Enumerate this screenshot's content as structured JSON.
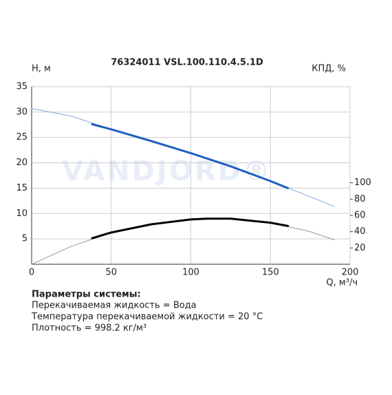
{
  "chart_data": {
    "type": "line",
    "title": "76324011 VSL.100.110.4.5.1D",
    "watermark": "VANDJORD®",
    "ylabel": "H, м",
    "y2label": "КПД, %",
    "xlabel": "Q, м³/ч",
    "xlim": [
      0,
      200
    ],
    "xticks": [
      0,
      50,
      100,
      150,
      200
    ],
    "ylim": [
      0,
      35
    ],
    "yticks": [
      5,
      10,
      15,
      20,
      25,
      30,
      35
    ],
    "y2lim": [
      0,
      218
    ],
    "y2ticks": [
      20,
      40,
      60,
      80,
      100
    ],
    "grid": true,
    "series": [
      {
        "color": "#7fa6dc",
        "width": 1,
        "x": [
          0,
          25,
          50,
          75,
          100,
          125,
          150,
          175,
          190
        ],
        "values": [
          30.7,
          29.2,
          26.6,
          24.3,
          21.9,
          19.3,
          16.4,
          13.3,
          11.4
        ]
      },
      {
        "color": "#1f5fbf",
        "width": 3,
        "x": [
          38,
          50,
          75,
          100,
          125,
          150,
          161
        ],
        "values": [
          27.6,
          26.6,
          24.3,
          21.9,
          19.3,
          16.4,
          15.0
        ]
      },
      {
        "color": "#999999",
        "width": 1,
        "axis": "y2",
        "x": [
          0,
          25,
          50,
          75,
          100,
          125,
          150,
          175,
          190
        ],
        "values": [
          0,
          22,
          39,
          49,
          55,
          56,
          51,
          40,
          30
        ]
      },
      {
        "color": "#000000",
        "width": 3,
        "axis": "y2",
        "x": [
          38,
          50,
          75,
          100,
          110,
          125,
          150,
          161
        ],
        "values": [
          32,
          39,
          49,
          55,
          56,
          56,
          51,
          47
        ]
      }
    ]
  },
  "system_parameters": {
    "title": "Параметры системы:",
    "lines": [
      "Перекачиваемая жидкость = Вода",
      "Температура перекачиваемой жидкости = 20 °C",
      "Плотность = 998.2 кг/м³"
    ]
  }
}
